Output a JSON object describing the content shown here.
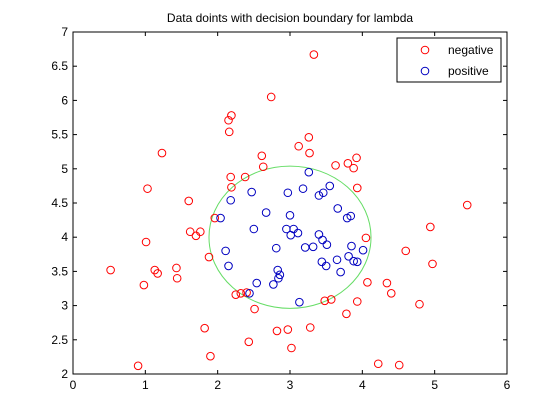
{
  "chart_data": {
    "type": "scatter",
    "title": "Data doints with decision boundary for lambda",
    "xlabel": "",
    "ylabel": "",
    "xlim": [
      0,
      6
    ],
    "ylim": [
      2,
      7
    ],
    "xticks": [
      "0",
      "1",
      "2",
      "3",
      "4",
      "5",
      "6"
    ],
    "yticks": [
      "2",
      "2.5",
      "3",
      "3.5",
      "4",
      "4.5",
      "5",
      "5.5",
      "6",
      "6.5",
      "7"
    ],
    "grid": false,
    "legend_position": "top-right",
    "series": [
      {
        "name": "negative",
        "marker": "circle",
        "color": "#ff0000",
        "points": [
          [
            0.52,
            3.52
          ],
          [
            0.98,
            3.3
          ],
          [
            1.01,
            3.93
          ],
          [
            1.03,
            4.71
          ],
          [
            1.13,
            3.52
          ],
          [
            1.17,
            3.47
          ],
          [
            1.23,
            5.23
          ],
          [
            1.43,
            3.55
          ],
          [
            1.44,
            3.4
          ],
          [
            1.6,
            4.53
          ],
          [
            1.62,
            4.08
          ],
          [
            1.7,
            4.02
          ],
          [
            1.76,
            4.08
          ],
          [
            1.82,
            2.67
          ],
          [
            1.88,
            3.71
          ],
          [
            1.9,
            2.26
          ],
          [
            1.96,
            4.28
          ],
          [
            2.15,
            5.71
          ],
          [
            2.16,
            5.54
          ],
          [
            2.18,
            4.88
          ],
          [
            2.19,
            5.78
          ],
          [
            2.19,
            4.73
          ],
          [
            2.25,
            3.16
          ],
          [
            2.32,
            3.18
          ],
          [
            2.38,
            4.88
          ],
          [
            2.4,
            3.19
          ],
          [
            2.43,
            2.47
          ],
          [
            2.51,
            2.95
          ],
          [
            2.61,
            5.19
          ],
          [
            2.63,
            5.03
          ],
          [
            2.74,
            6.05
          ],
          [
            2.82,
            2.63
          ],
          [
            2.97,
            2.65
          ],
          [
            3.02,
            2.38
          ],
          [
            3.12,
            5.33
          ],
          [
            3.26,
            5.46
          ],
          [
            3.27,
            5.23
          ],
          [
            3.28,
            2.68
          ],
          [
            3.33,
            6.67
          ],
          [
            3.48,
            3.07
          ],
          [
            3.57,
            3.09
          ],
          [
            3.63,
            5.05
          ],
          [
            3.78,
            2.88
          ],
          [
            3.8,
            5.08
          ],
          [
            3.88,
            5.01
          ],
          [
            3.92,
            5.16
          ],
          [
            3.93,
            4.72
          ],
          [
            3.93,
            3.06
          ],
          [
            4.05,
            3.99
          ],
          [
            4.07,
            3.34
          ],
          [
            4.22,
            2.15
          ],
          [
            4.34,
            3.33
          ],
          [
            4.4,
            3.18
          ],
          [
            4.51,
            2.13
          ],
          [
            4.6,
            3.8
          ],
          [
            4.79,
            3.02
          ],
          [
            4.94,
            4.15
          ],
          [
            4.97,
            3.61
          ],
          [
            5.45,
            4.47
          ],
          [
            0.9,
            2.12
          ]
        ]
      },
      {
        "name": "positive",
        "marker": "circle",
        "color": "#0000c0",
        "points": [
          [
            2.04,
            4.28
          ],
          [
            2.11,
            3.8
          ],
          [
            2.15,
            3.58
          ],
          [
            2.18,
            4.54
          ],
          [
            2.44,
            3.18
          ],
          [
            2.47,
            4.66
          ],
          [
            2.5,
            4.12
          ],
          [
            2.54,
            3.33
          ],
          [
            2.67,
            4.36
          ],
          [
            2.77,
            3.31
          ],
          [
            2.81,
            3.84
          ],
          [
            2.83,
            3.52
          ],
          [
            2.84,
            3.4
          ],
          [
            2.86,
            3.45
          ],
          [
            2.95,
            4.12
          ],
          [
            2.97,
            4.65
          ],
          [
            3.0,
            4.32
          ],
          [
            3.01,
            4.03
          ],
          [
            3.05,
            4.12
          ],
          [
            3.11,
            4.06
          ],
          [
            3.13,
            3.05
          ],
          [
            3.18,
            4.71
          ],
          [
            3.21,
            3.85
          ],
          [
            3.26,
            4.95
          ],
          [
            3.32,
            3.86
          ],
          [
            3.4,
            4.04
          ],
          [
            3.4,
            4.61
          ],
          [
            3.44,
            3.64
          ],
          [
            3.45,
            3.96
          ],
          [
            3.46,
            4.65
          ],
          [
            3.5,
            3.58
          ],
          [
            3.51,
            3.89
          ],
          [
            3.55,
            4.75
          ],
          [
            3.65,
            3.67
          ],
          [
            3.66,
            4.42
          ],
          [
            3.7,
            3.49
          ],
          [
            3.79,
            4.28
          ],
          [
            3.81,
            3.72
          ],
          [
            3.84,
            4.31
          ],
          [
            3.85,
            3.87
          ],
          [
            3.88,
            3.65
          ],
          [
            3.93,
            3.64
          ],
          [
            4.01,
            3.81
          ]
        ]
      }
    ],
    "decision_boundary": {
      "color": "#66dd66",
      "center": [
        3.0,
        4.0
      ],
      "radii": [
        1.12,
        1.04
      ]
    }
  }
}
